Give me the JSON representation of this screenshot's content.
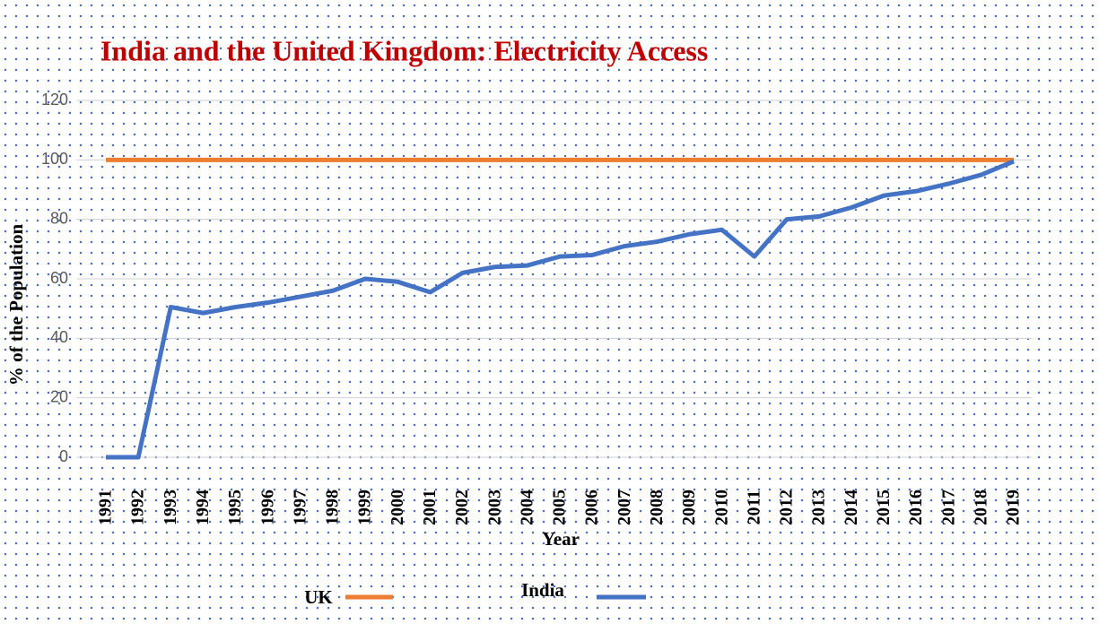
{
  "chart_data": {
    "type": "line",
    "title": "India and the United Kingdom: Electricity Access",
    "x_label": "Year",
    "y_label": "% of the Population",
    "categories": [
      "1991",
      "1992",
      "1993",
      "1994",
      "1995",
      "1996",
      "1997",
      "1998",
      "1999",
      "2000",
      "2001",
      "2002",
      "2003",
      "2004",
      "2005",
      "2006",
      "2007",
      "2008",
      "2009",
      "2010",
      "2011",
      "2012",
      "2013",
      "2014",
      "2015",
      "2016",
      "2017",
      "2018",
      "2019"
    ],
    "series": [
      {
        "name": "UK",
        "color": "#ed7d31",
        "values": [
          100,
          100,
          100,
          100,
          100,
          100,
          100,
          100,
          100,
          100,
          100,
          100,
          100,
          100,
          100,
          100,
          100,
          100,
          100,
          100,
          100,
          100,
          100,
          100,
          100,
          100,
          100,
          100,
          100
        ]
      },
      {
        "name": "India",
        "color": "#4472c4",
        "values": [
          0,
          0,
          50.5,
          48.5,
          50.5,
          52,
          54,
          56,
          60,
          59,
          55.5,
          62,
          64,
          64.5,
          67.5,
          68,
          71,
          72.5,
          75,
          76.5,
          67.5,
          80,
          81,
          84,
          88,
          89.5,
          92,
          95,
          99.5
        ]
      }
    ],
    "ylim": [
      0,
      120
    ],
    "yticks": [
      0,
      20,
      40,
      60,
      80,
      100,
      120
    ],
    "grid": true,
    "legend": "bottom"
  }
}
